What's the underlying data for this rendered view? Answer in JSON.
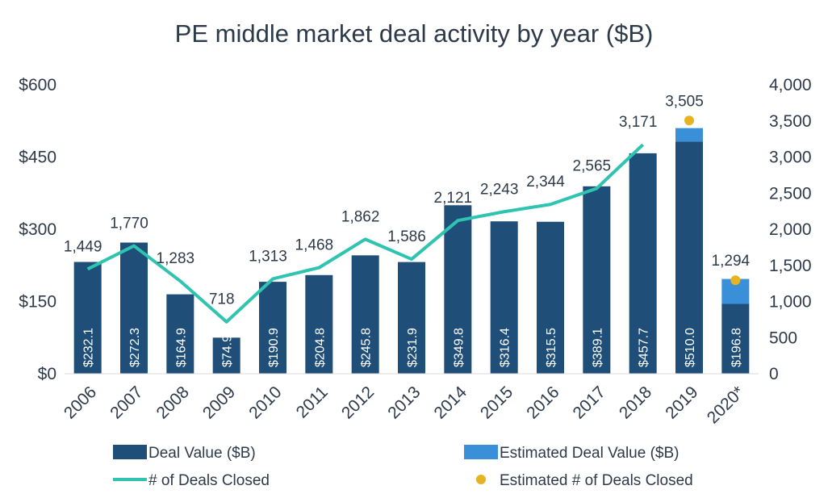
{
  "chart_data": {
    "type": "bar",
    "title": "PE middle market deal activity by year ($B)",
    "categories": [
      "2006",
      "2007",
      "2008",
      "2009",
      "2010",
      "2011",
      "2012",
      "2013",
      "2014",
      "2015",
      "2016",
      "2017",
      "2018",
      "2019",
      "2020*"
    ],
    "series": [
      {
        "name": "Deal Value ($B)",
        "type": "bar",
        "axis": "left",
        "color": "#1f4e79",
        "values": [
          232.1,
          272.3,
          164.9,
          74.9,
          190.9,
          204.8,
          245.8,
          231.9,
          349.8,
          316.4,
          315.5,
          389.1,
          457.7,
          482,
          145
        ]
      },
      {
        "name": "Estimated Deal Value ($B)",
        "type": "bar-stacked",
        "axis": "left",
        "color": "#3a8fd9",
        "values": [
          0,
          0,
          0,
          0,
          0,
          0,
          0,
          0,
          0,
          0,
          0,
          0,
          0,
          28,
          51.8
        ]
      },
      {
        "name": "# of Deals Closed",
        "type": "line",
        "axis": "right",
        "color": "#2ec4b0",
        "values": [
          1449,
          1770,
          1283,
          718,
          1313,
          1468,
          1862,
          1586,
          2121,
          2243,
          2344,
          2565,
          3171,
          null,
          null
        ]
      },
      {
        "name": "Estimated # of Deals Closed",
        "type": "scatter",
        "axis": "right",
        "color": "#e6b422",
        "values": [
          null,
          null,
          null,
          null,
          null,
          null,
          null,
          null,
          null,
          null,
          null,
          null,
          null,
          3505,
          1294
        ]
      }
    ],
    "bar_labels": [
      "$232.1",
      "$272.3",
      "$164.9",
      "$74.9",
      "$190.9",
      "$204.8",
      "$245.8",
      "$231.9",
      "$349.8",
      "$316.4",
      "$315.5",
      "$389.1",
      "$457.7",
      "$510.0",
      "$196.8"
    ],
    "count_labels": [
      "1,449",
      "1,770",
      "1,283",
      "718",
      "1,313",
      "1,468",
      "1,862",
      "1,586",
      "2,121",
      "2,243",
      "2,344",
      "2,565",
      "3,171",
      "3,505",
      "1,294"
    ],
    "y_left": {
      "min": 0,
      "max": 600,
      "ticks": [
        "$0",
        "$150",
        "$300",
        "$450",
        "$600"
      ]
    },
    "y_right": {
      "min": 0,
      "max": 4000,
      "ticks": [
        "0",
        "500",
        "1,000",
        "1,500",
        "2,000",
        "2,500",
        "3,000",
        "3,500",
        "4,000"
      ]
    },
    "grid": false,
    "legend": "bottom"
  }
}
